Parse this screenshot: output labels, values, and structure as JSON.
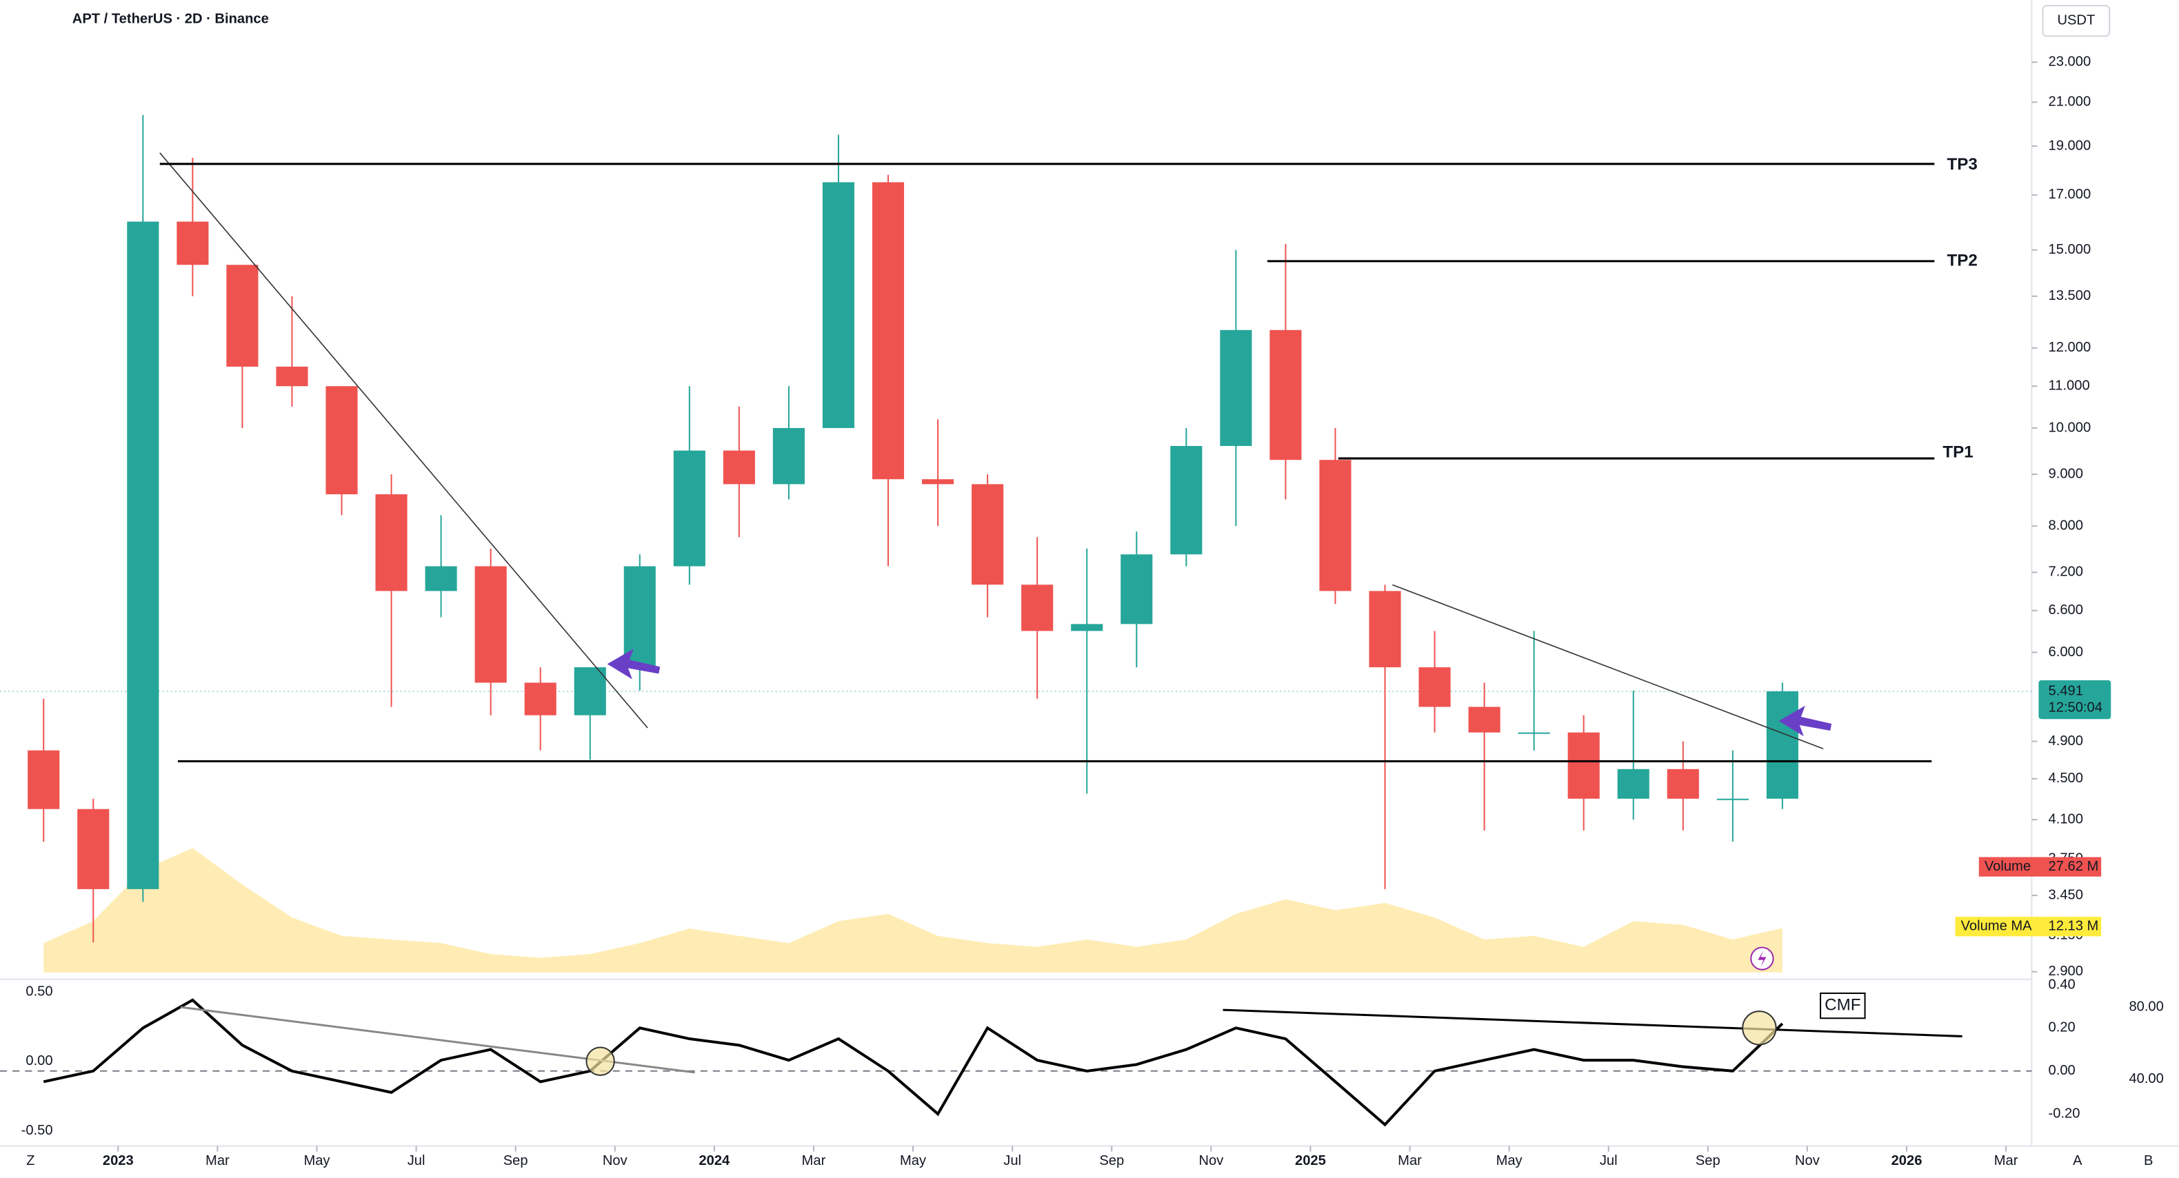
{
  "chart_data": {
    "type": "candlestick",
    "title": "APT / TetherUS · 2D · Binance",
    "currency": "USDT",
    "x": [
      "2022-11",
      "2022-12",
      "2023-01",
      "2023-02",
      "2023-03",
      "2023-04",
      "2023-05",
      "2023-06",
      "2023-07",
      "2023-08",
      "2023-09",
      "2023-10",
      "2023-11",
      "2023-12",
      "2024-01",
      "2024-02",
      "2024-03",
      "2024-04",
      "2024-05",
      "2024-06",
      "2024-07",
      "2024-08",
      "2024-09",
      "2024-10",
      "2024-11",
      "2024-12",
      "2025-01",
      "2025-02",
      "2025-03",
      "2025-04",
      "2025-05",
      "2025-06",
      "2025-07",
      "2025-08",
      "2025-09",
      "2025-10"
    ],
    "open": [
      4.8,
      4.2,
      3.5,
      16.0,
      14.5,
      11.5,
      11.0,
      8.6,
      6.9,
      7.3,
      5.6,
      5.2,
      5.8,
      7.3,
      9.5,
      8.8,
      10.0,
      17.5,
      8.9,
      8.8,
      7.0,
      6.3,
      6.4,
      7.5,
      9.6,
      12.5,
      9.3,
      6.9,
      5.8,
      5.3,
      5.0,
      5.0,
      4.3,
      4.6,
      4.3,
      4.3
    ],
    "high": [
      5.4,
      4.3,
      20.4,
      18.5,
      14.5,
      13.5,
      11.0,
      9.0,
      8.2,
      7.6,
      5.8,
      5.8,
      7.5,
      11.0,
      10.5,
      11.0,
      19.5,
      17.8,
      10.2,
      9.0,
      7.8,
      7.6,
      7.9,
      10.0,
      15.0,
      15.2,
      10.0,
      7.0,
      6.3,
      5.6,
      6.3,
      5.2,
      5.5,
      4.9,
      4.8,
      5.6
    ],
    "low": [
      3.9,
      3.1,
      3.4,
      13.5,
      10.0,
      10.5,
      8.2,
      5.3,
      6.5,
      5.2,
      4.8,
      4.7,
      5.5,
      7.0,
      7.8,
      8.5,
      10.0,
      7.3,
      8.0,
      6.5,
      5.4,
      4.35,
      5.8,
      7.3,
      8.0,
      8.5,
      6.7,
      3.5,
      5.0,
      4.0,
      4.8,
      4.0,
      4.1,
      4.0,
      3.9,
      4.2
    ],
    "close": [
      4.2,
      3.5,
      16.0,
      14.5,
      11.5,
      11.0,
      8.6,
      6.9,
      7.3,
      5.6,
      5.2,
      5.8,
      7.3,
      9.5,
      8.8,
      10.0,
      17.5,
      8.9,
      8.8,
      7.0,
      6.3,
      6.4,
      7.5,
      9.6,
      12.5,
      9.3,
      6.9,
      5.8,
      5.3,
      5.0,
      5.0,
      4.3,
      4.6,
      4.3,
      4.3,
      5.491
    ],
    "colors": {
      "up": "#26a69a",
      "down": "#ef5350"
    },
    "log_scale": true,
    "grid": false,
    "xlim": [
      "2022-11",
      "2026-03"
    ],
    "xticks": [
      {
        "value": "2023-01",
        "label": "2023"
      },
      {
        "value": "2023-03",
        "label": "Mar"
      },
      {
        "value": "2023-05",
        "label": "May"
      },
      {
        "value": "2023-07",
        "label": "Jul"
      },
      {
        "value": "2023-09",
        "label": "Sep"
      },
      {
        "value": "2023-11",
        "label": "Nov"
      },
      {
        "value": "2024-01",
        "label": "2024"
      },
      {
        "value": "2024-03",
        "label": "Mar"
      },
      {
        "value": "2024-05",
        "label": "May"
      },
      {
        "value": "2024-07",
        "label": "Jul"
      },
      {
        "value": "2024-09",
        "label": "Sep"
      },
      {
        "value": "2024-11",
        "label": "Nov"
      },
      {
        "value": "2025-01",
        "label": "2025"
      },
      {
        "value": "2025-03",
        "label": "Mar"
      },
      {
        "value": "2025-05",
        "label": "May"
      },
      {
        "value": "2025-07",
        "label": "Jul"
      },
      {
        "value": "2025-09",
        "label": "Sep"
      },
      {
        "value": "2025-11",
        "label": "Nov"
      },
      {
        "value": "2026-01",
        "label": "2026"
      },
      {
        "value": "2026-03",
        "label": "Mar"
      }
    ],
    "ylim": [
      2.85,
      26.5
    ],
    "yticks": [
      {
        "value": 2.9,
        "label": "2.900"
      },
      {
        "value": 3.15,
        "label": "3.150"
      },
      {
        "value": 3.45,
        "label": "3.450"
      },
      {
        "value": 3.75,
        "label": "3.750"
      },
      {
        "value": 4.1,
        "label": "4.100"
      },
      {
        "value": 4.5,
        "label": "4.500"
      },
      {
        "value": 4.9,
        "label": "4.900"
      },
      {
        "value": 6,
        "label": "6.000"
      },
      {
        "value": 6.6,
        "label": "6.600"
      },
      {
        "value": 7.2,
        "label": "7.200"
      },
      {
        "value": 8,
        "label": "8.000"
      },
      {
        "value": 9,
        "label": "9.000"
      },
      {
        "value": 10,
        "label": "10.000"
      },
      {
        "value": 11,
        "label": "11.000"
      },
      {
        "value": 12,
        "label": "12.000"
      },
      {
        "value": 13.5,
        "label": "13.500"
      },
      {
        "value": 15,
        "label": "15.000"
      },
      {
        "value": 17,
        "label": "17.000"
      },
      {
        "value": 19,
        "label": "19.000"
      },
      {
        "value": 21,
        "label": "21.000"
      },
      {
        "value": 23,
        "label": "23.000"
      }
    ],
    "current_price": 5.491,
    "countdown": "12:50:04",
    "levels": [
      "TP3",
      "TP2",
      "TP1"
    ],
    "volume": {
      "name": "Volume",
      "last_label": "27.62 M"
    },
    "volume_ma": {
      "name": "Volume MA",
      "last_label": "12.13 M",
      "color": "#ffe082",
      "ylim": [
        0,
        60
      ],
      "values": [
        8,
        14,
        28,
        34,
        24,
        15,
        10,
        9,
        8,
        5,
        4,
        5,
        8,
        12,
        10,
        8,
        14,
        16,
        10,
        8,
        7,
        9,
        7,
        9,
        16,
        20,
        17,
        19,
        15,
        9,
        10,
        7,
        14,
        13,
        9,
        12.13
      ]
    },
    "indicator": {
      "name": "CMF",
      "color": "#000000",
      "values": [
        -0.05,
        0.0,
        0.2,
        0.33,
        0.12,
        0.0,
        -0.05,
        -0.1,
        0.05,
        0.1,
        -0.05,
        0.0,
        0.2,
        0.15,
        0.12,
        0.05,
        0.15,
        0.0,
        -0.2,
        0.2,
        0.05,
        0.0,
        0.03,
        0.1,
        0.2,
        0.15,
        -0.05,
        -0.25,
        0.0,
        0.05,
        0.1,
        0.05,
        0.05,
        0.02,
        0.0,
        0.22
      ],
      "ylim": [
        -0.33,
        0.42
      ],
      "yticks": [
        {
          "value": 0.4,
          "label": "0.40"
        },
        {
          "value": 0.2,
          "label": "0.20"
        },
        {
          "value": 0,
          "label": "0.00"
        },
        {
          "value": -0.2,
          "label": "-0.20"
        }
      ],
      "y2lim": [
        -0.58,
        0.58
      ],
      "y2ticks": [
        {
          "value": 0.5,
          "label": "0.50"
        },
        {
          "value": 0,
          "label": "0.00"
        },
        {
          "value": -0.5,
          "label": "-0.50"
        }
      ],
      "y3lim": [
        5.4,
        94.6
      ],
      "y3ticks": [
        {
          "value": 80,
          "label": "80.00"
        },
        {
          "value": 40,
          "label": "40.00"
        }
      ]
    },
    "ui_buttons": [
      "Z",
      "A",
      "B"
    ]
  }
}
